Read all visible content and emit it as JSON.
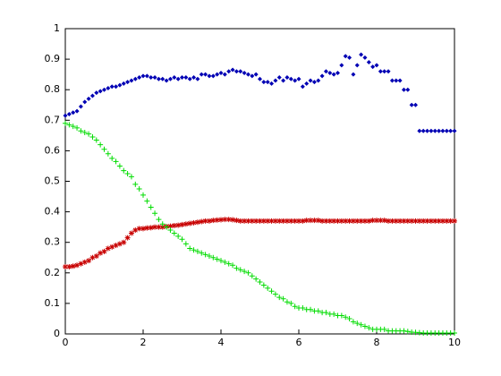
{
  "chart_data": {
    "type": "scatter",
    "x": [
      0,
      0.1,
      0.2,
      0.3,
      0.4,
      0.5,
      0.6,
      0.7,
      0.8,
      0.9,
      1,
      1.1,
      1.2,
      1.3,
      1.4,
      1.5,
      1.6,
      1.7,
      1.8,
      1.9,
      2,
      2.1,
      2.2,
      2.3,
      2.4,
      2.5,
      2.6,
      2.7,
      2.8,
      2.9,
      3,
      3.1,
      3.2,
      3.3,
      3.4,
      3.5,
      3.6,
      3.7,
      3.8,
      3.9,
      4,
      4.1,
      4.2,
      4.3,
      4.4,
      4.5,
      4.6,
      4.7,
      4.8,
      4.9,
      5,
      5.1,
      5.2,
      5.3,
      5.4,
      5.5,
      5.6,
      5.7,
      5.8,
      5.9,
      6,
      6.1,
      6.2,
      6.3,
      6.4,
      6.5,
      6.6,
      6.7,
      6.8,
      6.9,
      7,
      7.1,
      7.2,
      7.3,
      7.4,
      7.5,
      7.6,
      7.7,
      7.8,
      7.9,
      8,
      8.1,
      8.2,
      8.3,
      8.4,
      8.5,
      8.6,
      8.7,
      8.8,
      8.9,
      9,
      9.1,
      9.2,
      9.3,
      9.4,
      9.5,
      9.6,
      9.7,
      9.8,
      9.9,
      10
    ],
    "series": [
      {
        "color": "#0000b4",
        "marker": "dot",
        "values": [
          0.715,
          0.72,
          0.725,
          0.73,
          0.745,
          0.76,
          0.77,
          0.78,
          0.79,
          0.795,
          0.8,
          0.805,
          0.81,
          0.81,
          0.815,
          0.82,
          0.825,
          0.83,
          0.835,
          0.84,
          0.845,
          0.845,
          0.84,
          0.84,
          0.835,
          0.835,
          0.83,
          0.835,
          0.84,
          0.835,
          0.84,
          0.84,
          0.835,
          0.84,
          0.835,
          0.85,
          0.85,
          0.845,
          0.845,
          0.85,
          0.855,
          0.85,
          0.86,
          0.865,
          0.86,
          0.86,
          0.855,
          0.85,
          0.845,
          0.85,
          0.835,
          0.825,
          0.825,
          0.82,
          0.83,
          0.84,
          0.83,
          0.84,
          0.835,
          0.83,
          0.835,
          0.81,
          0.82,
          0.83,
          0.825,
          0.83,
          0.845,
          0.86,
          0.855,
          0.85,
          0.855,
          0.88,
          0.91,
          0.905,
          0.85,
          0.88,
          0.915,
          0.905,
          0.89,
          0.875,
          0.88,
          0.86,
          0.86,
          0.86,
          0.83,
          0.83,
          0.83,
          0.8,
          0.8,
          0.75,
          0.75,
          0.665,
          0.665,
          0.665,
          0.665,
          0.665,
          0.665,
          0.665,
          0.665,
          0.665,
          0.665
        ]
      },
      {
        "color": "#c80000",
        "marker": "star",
        "values": [
          0.22,
          0.22,
          0.222,
          0.225,
          0.23,
          0.235,
          0.24,
          0.25,
          0.255,
          0.265,
          0.27,
          0.28,
          0.285,
          0.29,
          0.295,
          0.3,
          0.315,
          0.33,
          0.34,
          0.345,
          0.345,
          0.347,
          0.348,
          0.35,
          0.35,
          0.35,
          0.352,
          0.353,
          0.355,
          0.356,
          0.358,
          0.36,
          0.362,
          0.364,
          0.366,
          0.368,
          0.37,
          0.37,
          0.372,
          0.373,
          0.374,
          0.375,
          0.375,
          0.374,
          0.372,
          0.37,
          0.37,
          0.37,
          0.37,
          0.37,
          0.37,
          0.37,
          0.37,
          0.37,
          0.37,
          0.37,
          0.37,
          0.37,
          0.37,
          0.37,
          0.37,
          0.37,
          0.372,
          0.372,
          0.372,
          0.372,
          0.37,
          0.37,
          0.37,
          0.37,
          0.37,
          0.37,
          0.37,
          0.37,
          0.37,
          0.37,
          0.37,
          0.37,
          0.37,
          0.372,
          0.372,
          0.372,
          0.372,
          0.37,
          0.37,
          0.37,
          0.37,
          0.37,
          0.37,
          0.37,
          0.37,
          0.37,
          0.37,
          0.37,
          0.37,
          0.37,
          0.37,
          0.37,
          0.37,
          0.37,
          0.37
        ]
      },
      {
        "color": "#00dc00",
        "marker": "plus",
        "values": [
          0.69,
          0.685,
          0.68,
          0.675,
          0.665,
          0.66,
          0.655,
          0.645,
          0.635,
          0.62,
          0.605,
          0.59,
          0.575,
          0.565,
          0.55,
          0.535,
          0.525,
          0.515,
          0.49,
          0.475,
          0.455,
          0.435,
          0.415,
          0.395,
          0.375,
          0.36,
          0.35,
          0.34,
          0.33,
          0.32,
          0.31,
          0.295,
          0.28,
          0.275,
          0.27,
          0.265,
          0.26,
          0.255,
          0.25,
          0.245,
          0.24,
          0.235,
          0.23,
          0.225,
          0.215,
          0.21,
          0.205,
          0.2,
          0.19,
          0.18,
          0.17,
          0.16,
          0.15,
          0.14,
          0.13,
          0.12,
          0.115,
          0.105,
          0.1,
          0.09,
          0.085,
          0.085,
          0.08,
          0.08,
          0.075,
          0.075,
          0.07,
          0.07,
          0.065,
          0.065,
          0.06,
          0.06,
          0.055,
          0.05,
          0.04,
          0.035,
          0.03,
          0.025,
          0.02,
          0.015,
          0.015,
          0.015,
          0.015,
          0.01,
          0.01,
          0.01,
          0.01,
          0.01,
          0.008,
          0.006,
          0.005,
          0.004,
          0.003,
          0.003,
          0.003,
          0.003,
          0.003,
          0.003,
          0.003,
          0.003,
          0.003
        ]
      }
    ],
    "xlim": [
      0,
      10
    ],
    "xticks": [
      0,
      2,
      4,
      6,
      8,
      10
    ],
    "ylim": [
      0,
      1
    ],
    "yticks": [
      0,
      0.1,
      0.2,
      0.3,
      0.4,
      0.5,
      0.6,
      0.7,
      0.8,
      0.9,
      1
    ]
  }
}
